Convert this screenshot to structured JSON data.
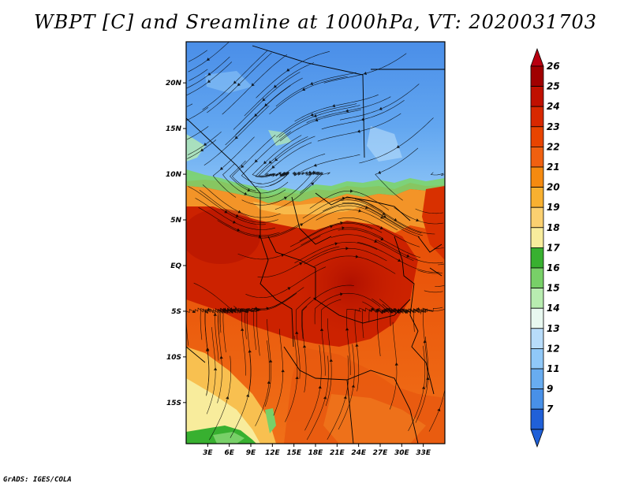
{
  "title": "WBPT [C] and Sreamline at 1000hPa, VT: 2020031703",
  "credit": "GrADS: IGES/COLA",
  "map": {
    "lon_range": [
      0,
      36
    ],
    "lat_range": [
      -19.5,
      24.5
    ],
    "lat_ticks": [
      {
        "value": 20,
        "label": "20N"
      },
      {
        "value": 15,
        "label": "15N"
      },
      {
        "value": 10,
        "label": "10N"
      },
      {
        "value": 5,
        "label": "5N"
      },
      {
        "value": 0,
        "label": "EQ"
      },
      {
        "value": -5,
        "label": "5S"
      },
      {
        "value": -10,
        "label": "10S"
      },
      {
        "value": -15,
        "label": "15S"
      }
    ],
    "lon_ticks": [
      {
        "value": 3,
        "label": "3E"
      },
      {
        "value": 6,
        "label": "6E"
      },
      {
        "value": 9,
        "label": "9E"
      },
      {
        "value": 12,
        "label": "12E"
      },
      {
        "value": 15,
        "label": "15E"
      },
      {
        "value": 18,
        "label": "18E"
      },
      {
        "value": 21,
        "label": "21E"
      },
      {
        "value": 24,
        "label": "24E"
      },
      {
        "value": 27,
        "label": "27E"
      },
      {
        "value": 30,
        "label": "30E"
      },
      {
        "value": 33,
        "label": "33E"
      }
    ]
  },
  "colorbar": {
    "labels": [
      "26",
      "25",
      "24",
      "23",
      "22",
      "21",
      "20",
      "19",
      "18",
      "17",
      "16",
      "15",
      "14",
      "13",
      "12",
      "11",
      "9",
      "7"
    ],
    "colors": [
      "#a00000",
      "#c01000",
      "#d82800",
      "#e84400",
      "#f06010",
      "#f58a10",
      "#f8b030",
      "#fbd070",
      "#f8ec9c",
      "#38b030",
      "#78d068",
      "#b8ecb0",
      "#e8f8f0",
      "#b8dcfa",
      "#90c8f8",
      "#68acf0",
      "#4890e8",
      "#2060d8"
    ],
    "top_color": "#b80010",
    "bottom_color": "#2060d8"
  }
}
